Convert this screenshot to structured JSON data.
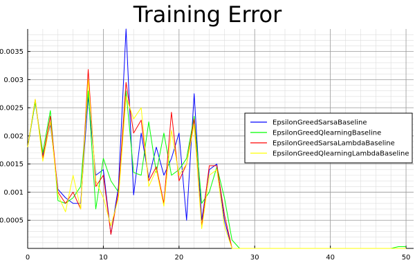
{
  "chart_data": {
    "type": "line",
    "title": "Training Error",
    "xlabel": "",
    "ylabel": "",
    "xlim": [
      0,
      51
    ],
    "ylim": [
      0,
      0.0039
    ],
    "xticks": [
      0,
      10,
      20,
      30,
      40,
      50
    ],
    "xtick_labels": [
      "0",
      "10",
      "20",
      "30",
      "40",
      "50"
    ],
    "yticks": [
      0.0005,
      0.001,
      0.0015,
      0.002,
      0.0025,
      0.003,
      0.0035
    ],
    "ytick_labels": [
      "0.0005",
      "0.001",
      "0.0015",
      "0.002",
      "0.0025",
      "0.003",
      "0.0035"
    ],
    "grid": true,
    "legend_position": "right",
    "series": [
      {
        "name": "EpsilonGreedSarsaBaseline",
        "color": "#0000ff",
        "x": [
          0,
          1,
          2,
          3,
          4,
          5,
          6,
          7,
          8,
          9,
          10,
          11,
          12,
          13,
          14,
          15,
          16,
          17,
          18,
          19,
          20,
          21,
          22,
          23,
          24,
          25,
          26,
          27,
          28,
          29,
          30,
          31,
          32,
          33,
          34,
          35,
          36,
          37,
          38,
          39,
          40,
          41,
          42,
          43,
          44,
          45,
          46,
          47,
          48,
          49,
          50
        ],
        "y": [
          0.0018,
          0.0026,
          0.00165,
          0.0022,
          0.00105,
          0.0009,
          0.0008,
          0.0008,
          0.0027,
          0.0013,
          0.0014,
          0.00025,
          0.0011,
          0.0039,
          0.00095,
          0.00205,
          0.00125,
          0.0018,
          0.0013,
          0.0016,
          0.00205,
          0.0005,
          0.00275,
          0.0005,
          0.0014,
          0.0015,
          0.0005,
          0,
          0,
          0,
          0,
          0,
          0,
          0,
          0,
          0,
          0,
          0,
          0,
          0,
          0,
          0,
          0,
          0,
          0,
          0,
          0,
          0,
          0,
          0,
          0
        ]
      },
      {
        "name": "EpsilonGreedQlearningBaseline",
        "color": "#00ff00",
        "x": [
          0,
          1,
          2,
          3,
          4,
          5,
          6,
          7,
          8,
          9,
          10,
          11,
          12,
          13,
          14,
          15,
          16,
          17,
          18,
          19,
          20,
          21,
          22,
          23,
          24,
          25,
          26,
          27,
          28,
          29,
          30,
          31,
          32,
          33,
          34,
          35,
          36,
          37,
          38,
          39,
          40,
          41,
          42,
          43,
          44,
          45,
          46,
          47,
          48,
          49,
          50
        ],
        "y": [
          0.0018,
          0.0026,
          0.0017,
          0.00245,
          0.00085,
          0.0008,
          0.0009,
          0.0011,
          0.0028,
          0.0007,
          0.0016,
          0.0012,
          0.001,
          0.0028,
          0.00135,
          0.0013,
          0.00225,
          0.00135,
          0.00205,
          0.0013,
          0.0014,
          0.0016,
          0.00235,
          0.0008,
          0.001,
          0.00145,
          0.0009,
          0.00015,
          0,
          0,
          0,
          0,
          0,
          0,
          0,
          0,
          0,
          0,
          0,
          0,
          0,
          0,
          0,
          0,
          0,
          0,
          0,
          0,
          0,
          3e-05,
          3e-05
        ]
      },
      {
        "name": "EpsilonGreedSarsaLambdaBaseline",
        "color": "#ff0000",
        "x": [
          0,
          1,
          2,
          3,
          4,
          5,
          6,
          7,
          8,
          9,
          10,
          11,
          12,
          13,
          14,
          15,
          16,
          17,
          18,
          19,
          20,
          21,
          22,
          23,
          24,
          25,
          26,
          27,
          28,
          29,
          30,
          31,
          32,
          33,
          34,
          35,
          36,
          37,
          38,
          39,
          40,
          41,
          42,
          43,
          44,
          45,
          46,
          47,
          48,
          49,
          50
        ],
        "y": [
          0.0018,
          0.00265,
          0.0016,
          0.00235,
          0.001,
          0.0008,
          0.001,
          0.0007,
          0.00318,
          0.0011,
          0.0013,
          0.00025,
          0.001,
          0.00295,
          0.00205,
          0.00228,
          0.0012,
          0.00145,
          0.0008,
          0.00242,
          0.0012,
          0.0015,
          0.0023,
          0.0004,
          0.00147,
          0.00147,
          0.0006,
          0,
          0,
          0,
          0,
          0,
          0,
          0,
          0,
          0,
          0,
          0,
          0,
          0,
          0,
          0,
          0,
          0,
          0,
          0,
          0,
          0,
          0,
          0,
          0
        ]
      },
      {
        "name": "EpsilonGreedQlearningLambdaBaseline",
        "color": "#ffff00",
        "x": [
          0,
          1,
          2,
          3,
          4,
          5,
          6,
          7,
          8,
          9,
          10,
          11,
          12,
          13,
          14,
          15,
          16,
          17,
          18,
          19,
          20,
          21,
          22,
          23,
          24,
          25,
          26,
          27,
          28,
          29,
          30,
          31,
          32,
          33,
          34,
          35,
          36,
          37,
          38,
          39,
          40,
          41,
          42,
          43,
          44,
          45,
          46,
          47,
          48,
          49,
          50
        ],
        "y": [
          0.0018,
          0.00265,
          0.00155,
          0.00225,
          0.00095,
          0.00065,
          0.0013,
          0.0007,
          0.003,
          0.0012,
          0.0009,
          0.0004,
          0.0009,
          0.0027,
          0.0023,
          0.0025,
          0.0011,
          0.0014,
          0.00075,
          0.0021,
          0.0013,
          0.0015,
          0.0022,
          0.00035,
          0.0013,
          0.0014,
          0.0004,
          0,
          0,
          0,
          0,
          0,
          0,
          0,
          0,
          0,
          0,
          0,
          0,
          0,
          0,
          0,
          0,
          0,
          0,
          0,
          0,
          0,
          0,
          0,
          0
        ]
      }
    ]
  }
}
